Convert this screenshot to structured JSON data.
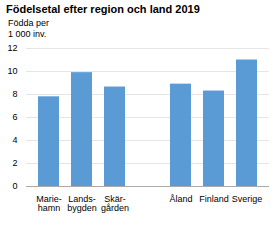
{
  "chart_data": {
    "type": "bar",
    "title": "Födelsetal efter region och land 2019",
    "ylabel": "Födda per\n1 000 inv.",
    "categories": [
      "Marie-\nhamn",
      "Lands-\nbygden",
      "Skär-\ngården",
      null,
      "Åland",
      "Finland",
      "Sverige"
    ],
    "values": [
      7.8,
      9.9,
      8.65,
      null,
      8.9,
      8.3,
      11.0
    ],
    "color": "#5b9bd5",
    "ylim": [
      0,
      12
    ],
    "yticks": [
      0,
      2,
      4,
      6,
      8,
      10,
      12
    ],
    "grid": true
  }
}
